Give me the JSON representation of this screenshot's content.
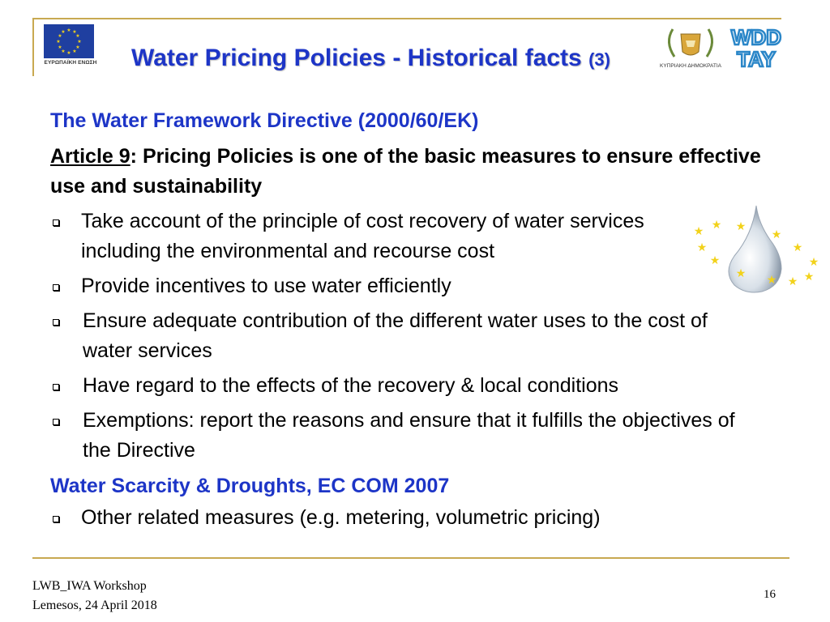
{
  "header": {
    "title": "Water Pricing Policies - Historical facts",
    "title_number": "(3)",
    "eu_caption": "ΕΥΡΩΠΑΪΚΗ ΕΝΩΣΗ",
    "cyprus_caption": "ΚΥΠΡΙΑΚΗ ΔΗΜΟΚΡΑΤΙΑ",
    "wdd_logo_text": [
      "WDD",
      "TAY"
    ]
  },
  "content": {
    "wfd_heading": "The Water Framework Directive (2000/60/EK)",
    "article_label": "Article 9",
    "article_text": ": Pricing Policies is one of the basic measures to ensure effective use and sustainability",
    "wfd_bullets": [
      "Take account of the principle of cost recovery of water services including the environmental and recourse cost",
      "Provide incentives to use water efficiently",
      "Ensure adequate contribution of the different water uses to the cost of water services",
      "Have regard to the effects of  the recovery &  local conditions",
      "Exemptions: report the reasons and ensure that it fulfills the objectives of the Directive"
    ],
    "wsd_heading": "Water Scarcity & Droughts, EC COM 2007",
    "wsd_bullets": [
      "Other related measures (e.g. metering, volumetric pricing)"
    ]
  },
  "footer": {
    "line1": "LWB_IWA Workshop",
    "line2": "Lemesos, 24 April 2018",
    "page_number": "16"
  },
  "colors": {
    "title_blue": "#1d35c7",
    "frame_gold": "#c8a951",
    "eu_blue": "#1f3fa0",
    "star_yellow": "#f2d21b"
  },
  "icons": [
    "eu-flag-logo",
    "cyprus-republic-emblem",
    "wdd-logo",
    "water-drop-with-stars"
  ]
}
